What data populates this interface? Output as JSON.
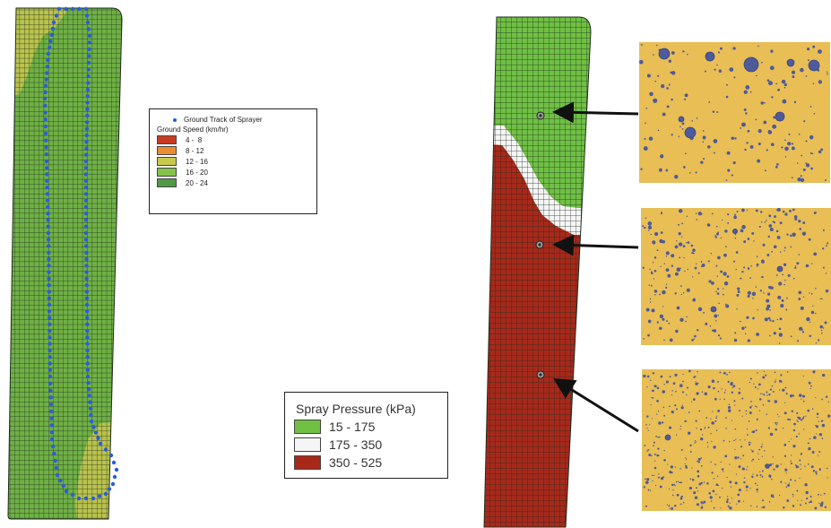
{
  "colors": {
    "grid_line": "#1f2d1f",
    "speed_green": "#6fb044",
    "speed_yellow": "#b9c24c",
    "track_blue": "#2a5ce0",
    "pressure_green": "#6fc043",
    "pressure_white": "#f5f5f5",
    "pressure_red": "#a8281a",
    "card_bg": "#e8be55",
    "droplet": "#4f5a9a",
    "arrow": "#111111"
  },
  "speed_legend": {
    "track_label": "Ground Track of Sprayer",
    "subtitle": "Ground Speed (km/hr)",
    "classes": [
      {
        "label": "4 -  8",
        "color": "#c93a23"
      },
      {
        "label": "8 - 12",
        "color": "#ec8c32"
      },
      {
        "label": "12 - 16",
        "color": "#c8c84c"
      },
      {
        "label": "16 - 20",
        "color": "#83c24b"
      },
      {
        "label": "20 - 24",
        "color": "#4f9a45"
      }
    ]
  },
  "pressure_legend": {
    "title": "Spray Pressure (kPa)",
    "classes": [
      {
        "label": "15 - 175",
        "color": "#6fc043"
      },
      {
        "label": "175 - 350",
        "color": "#f5f5f5"
      },
      {
        "label": "350 - 525",
        "color": "#a8281a"
      }
    ]
  },
  "sample_cards": [
    {
      "name": "spray-card-top",
      "density": "coarse"
    },
    {
      "name": "spray-card-middle",
      "density": "medium"
    },
    {
      "name": "spray-card-bottom",
      "density": "fine"
    }
  ]
}
